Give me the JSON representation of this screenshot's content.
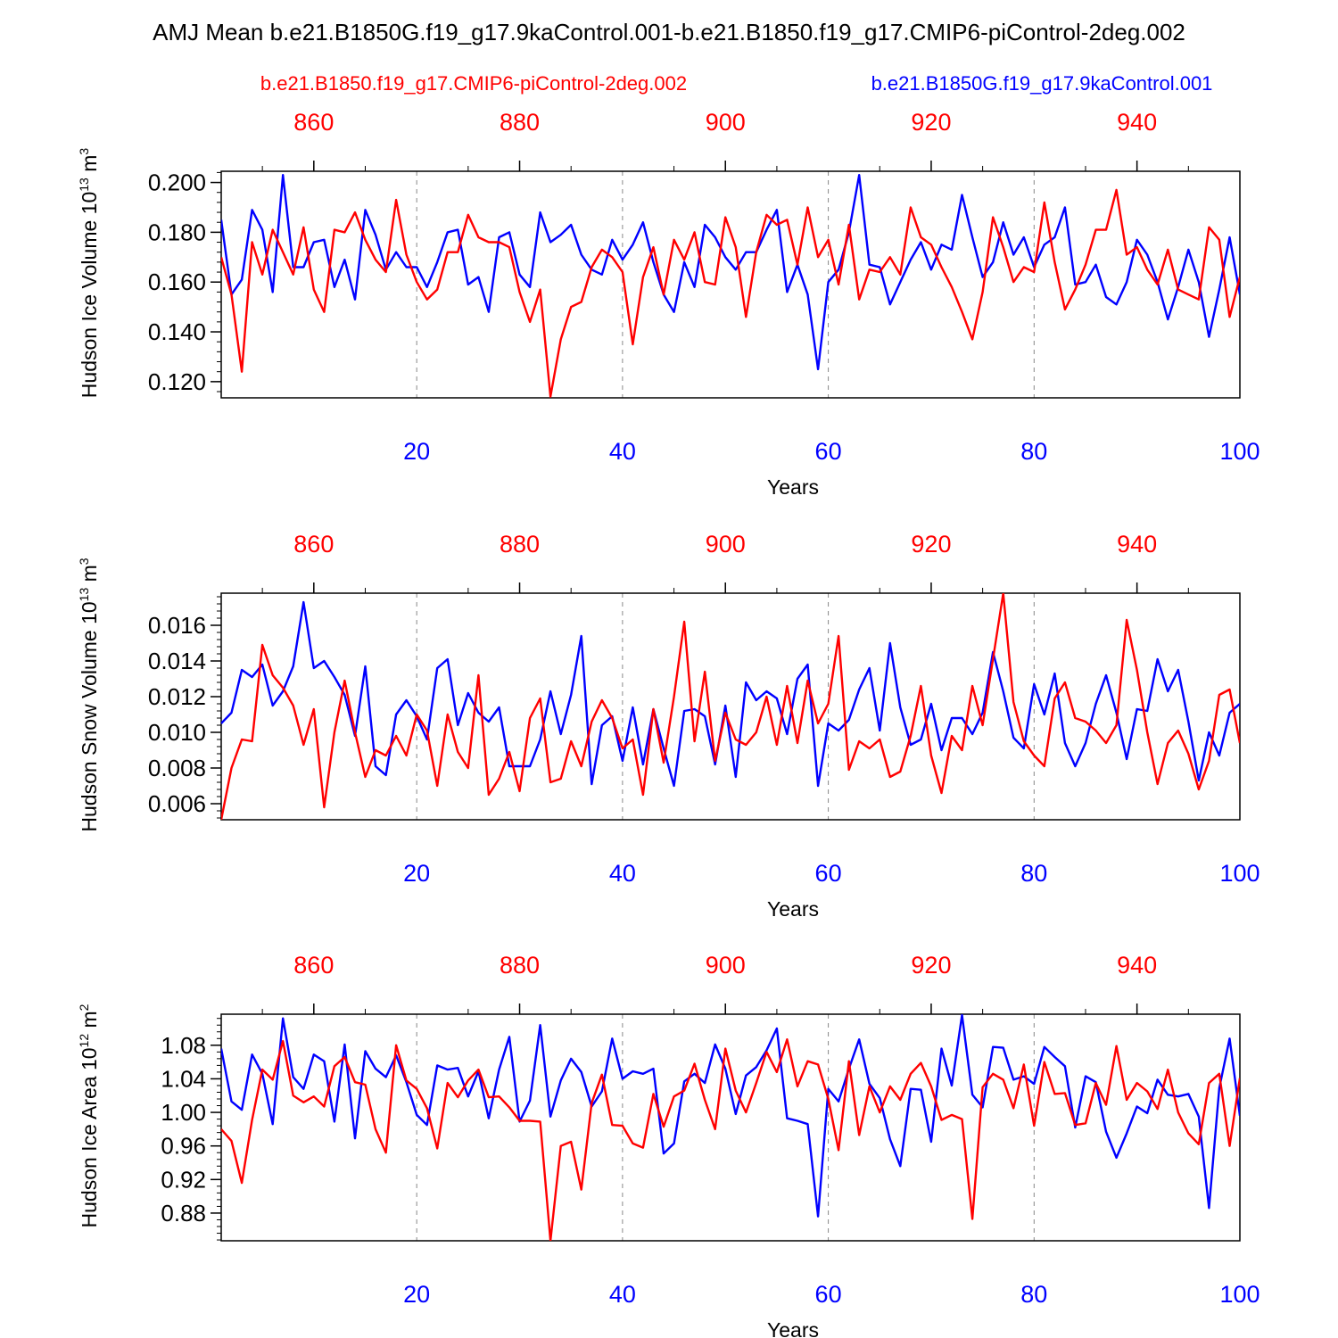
{
  "title": "AMJ Mean b.e21.B1850G.f19_g17.9kaControl.001-b.e21.B1850.f19_g17.CMIP6-piControl-2deg.002",
  "legend": {
    "red_label": "b.e21.B1850.f19_g17.CMIP6-piControl-2deg.002",
    "blue_label": "b.e21.B1850G.f19_g17.9kaControl.001"
  },
  "colors": {
    "red": "#ff0000",
    "blue": "#0000ff",
    "axis": "#000000",
    "grid": "#888888"
  },
  "chart_data": [
    {
      "type": "line",
      "ylabel": "Hudson Ice Volume 10",
      "ylabel_exp": "13",
      "ylabel_unit": " m",
      "ylabel_unit_exp": "3",
      "xlabel": "Years",
      "xlim": [
        1,
        100
      ],
      "ylim": [
        0.1135,
        0.2045
      ],
      "yticks": [
        0.12,
        0.14,
        0.16,
        0.18,
        0.2
      ],
      "ytick_labels": [
        "0.120",
        "0.140",
        "0.160",
        "0.180",
        "0.200"
      ],
      "yminor": 0.004,
      "xticks_bottom": [
        20,
        40,
        60,
        80,
        100
      ],
      "xtick_labels_bottom": [
        "20",
        "40",
        "60",
        "80",
        "100"
      ],
      "xticks_top_labels": [
        "860",
        "880",
        "900",
        "920",
        "940"
      ],
      "grid_x": [
        20,
        40,
        60,
        80
      ],
      "series": [
        {
          "name": "b.e21.B1850G.f19_g17.9kaControl.001",
          "color": "blue",
          "values": [
            0.185,
            0.155,
            0.161,
            0.189,
            0.181,
            0.156,
            0.203,
            0.166,
            0.166,
            0.176,
            0.177,
            0.158,
            0.169,
            0.153,
            0.189,
            0.179,
            0.165,
            0.172,
            0.166,
            0.166,
            0.158,
            0.168,
            0.18,
            0.181,
            0.159,
            0.162,
            0.148,
            0.178,
            0.18,
            0.163,
            0.158,
            0.188,
            0.176,
            0.179,
            0.183,
            0.171,
            0.165,
            0.163,
            0.177,
            0.169,
            0.175,
            0.184,
            0.168,
            0.155,
            0.148,
            0.168,
            0.158,
            0.183,
            0.178,
            0.17,
            0.165,
            0.172,
            0.172,
            0.181,
            0.189,
            0.156,
            0.167,
            0.155,
            0.125,
            0.16,
            0.165,
            0.18,
            0.203,
            0.167,
            0.166,
            0.151,
            0.16,
            0.169,
            0.176,
            0.165,
            0.175,
            0.173,
            0.195,
            0.178,
            0.162,
            0.168,
            0.184,
            0.171,
            0.178,
            0.166,
            0.175,
            0.178,
            0.19,
            0.159,
            0.16,
            0.167,
            0.154,
            0.151,
            0.16,
            0.177,
            0.171,
            0.16,
            0.145,
            0.158,
            0.173,
            0.16,
            0.138,
            0.157,
            0.178,
            0.155
          ]
        },
        {
          "name": "b.e21.B1850.f19_g17.CMIP6-piControl-2deg.002",
          "color": "red",
          "values": [
            0.17,
            0.155,
            0.124,
            0.176,
            0.163,
            0.181,
            0.172,
            0.163,
            0.182,
            0.157,
            0.148,
            0.181,
            0.18,
            0.188,
            0.177,
            0.169,
            0.164,
            0.193,
            0.171,
            0.16,
            0.153,
            0.157,
            0.172,
            0.172,
            0.187,
            0.178,
            0.176,
            0.176,
            0.174,
            0.156,
            0.144,
            0.157,
            0.114,
            0.137,
            0.15,
            0.152,
            0.166,
            0.173,
            0.17,
            0.164,
            0.135,
            0.162,
            0.174,
            0.155,
            0.177,
            0.169,
            0.18,
            0.16,
            0.159,
            0.186,
            0.174,
            0.146,
            0.172,
            0.187,
            0.183,
            0.185,
            0.167,
            0.19,
            0.17,
            0.177,
            0.159,
            0.183,
            0.153,
            0.165,
            0.164,
            0.17,
            0.163,
            0.19,
            0.178,
            0.175,
            0.166,
            0.158,
            0.148,
            0.137,
            0.156,
            0.186,
            0.174,
            0.16,
            0.166,
            0.164,
            0.192,
            0.168,
            0.149,
            0.157,
            0.167,
            0.181,
            0.181,
            0.197,
            0.171,
            0.174,
            0.165,
            0.159,
            0.173,
            0.157,
            0.155,
            0.153,
            0.182,
            0.177,
            0.146,
            0.162
          ]
        }
      ]
    },
    {
      "type": "line",
      "ylabel": "Hudson Snow Volume 10",
      "ylabel_exp": "13",
      "ylabel_unit": " m",
      "ylabel_unit_exp": "3",
      "xlabel": "Years",
      "xlim": [
        1,
        100
      ],
      "ylim": [
        0.0051,
        0.0178
      ],
      "yticks": [
        0.006,
        0.008,
        0.01,
        0.012,
        0.014,
        0.016
      ],
      "ytick_labels": [
        "0.006",
        "0.008",
        "0.010",
        "0.012",
        "0.014",
        "0.016"
      ],
      "yminor": 0.0004,
      "xticks_bottom": [
        20,
        40,
        60,
        80,
        100
      ],
      "xtick_labels_bottom": [
        "20",
        "40",
        "60",
        "80",
        "100"
      ],
      "xticks_top_labels": [
        "860",
        "880",
        "900",
        "920",
        "940"
      ],
      "grid_x": [
        20,
        40,
        60,
        80
      ],
      "series": [
        {
          "name": "b.e21.B1850G.f19_g17.9kaControl.001",
          "color": "blue",
          "values": [
            0.0105,
            0.0111,
            0.0135,
            0.0131,
            0.0138,
            0.0115,
            0.0123,
            0.0137,
            0.0173,
            0.0136,
            0.014,
            0.0131,
            0.0121,
            0.0098,
            0.0137,
            0.0081,
            0.0076,
            0.011,
            0.0118,
            0.0109,
            0.0096,
            0.0136,
            0.0141,
            0.0104,
            0.0122,
            0.0111,
            0.0106,
            0.0114,
            0.0081,
            0.0081,
            0.0081,
            0.0096,
            0.0123,
            0.0099,
            0.0121,
            0.0154,
            0.0071,
            0.0104,
            0.0109,
            0.0084,
            0.0114,
            0.0082,
            0.0113,
            0.0091,
            0.007,
            0.0112,
            0.0113,
            0.0109,
            0.0082,
            0.0115,
            0.0075,
            0.0128,
            0.0118,
            0.0123,
            0.0119,
            0.0099,
            0.013,
            0.0138,
            0.007,
            0.0105,
            0.0101,
            0.0107,
            0.0124,
            0.0136,
            0.0101,
            0.015,
            0.0114,
            0.0093,
            0.0096,
            0.0116,
            0.009,
            0.0108,
            0.0108,
            0.0099,
            0.0111,
            0.0145,
            0.0123,
            0.0097,
            0.0091,
            0.0127,
            0.011,
            0.0133,
            0.0094,
            0.0081,
            0.0094,
            0.0116,
            0.0132,
            0.0111,
            0.0085,
            0.0113,
            0.0112,
            0.0141,
            0.0123,
            0.0135,
            0.0106,
            0.0073,
            0.01,
            0.0087,
            0.0111,
            0.0116
          ]
        },
        {
          "name": "b.e21.B1850.f19_g17.CMIP6-piControl-2deg.002",
          "color": "red",
          "values": [
            0.0051,
            0.008,
            0.0096,
            0.0095,
            0.0149,
            0.0132,
            0.0125,
            0.0115,
            0.0093,
            0.0113,
            0.0058,
            0.01,
            0.0129,
            0.01,
            0.0075,
            0.009,
            0.0087,
            0.0098,
            0.0087,
            0.011,
            0.0101,
            0.007,
            0.011,
            0.0089,
            0.008,
            0.0132,
            0.0065,
            0.0074,
            0.0089,
            0.0067,
            0.0108,
            0.0119,
            0.0072,
            0.0074,
            0.0095,
            0.0081,
            0.0106,
            0.0118,
            0.0108,
            0.0091,
            0.0096,
            0.0065,
            0.0113,
            0.0083,
            0.012,
            0.0162,
            0.0095,
            0.0134,
            0.0084,
            0.0111,
            0.0096,
            0.0093,
            0.01,
            0.012,
            0.0093,
            0.0126,
            0.0094,
            0.0129,
            0.0105,
            0.0116,
            0.0154,
            0.0079,
            0.0095,
            0.0091,
            0.0096,
            0.0075,
            0.0078,
            0.0098,
            0.0126,
            0.0087,
            0.0066,
            0.0098,
            0.009,
            0.0126,
            0.0104,
            0.0141,
            0.0178,
            0.0117,
            0.0095,
            0.0087,
            0.0081,
            0.0119,
            0.0128,
            0.0108,
            0.0106,
            0.0101,
            0.0094,
            0.0104,
            0.0163,
            0.0135,
            0.01,
            0.0071,
            0.0094,
            0.0101,
            0.0088,
            0.0068,
            0.0084,
            0.0121,
            0.0124,
            0.0094
          ]
        }
      ]
    },
    {
      "type": "line",
      "ylabel": "Hudson Ice Area 10",
      "ylabel_exp": "12",
      "ylabel_unit": " m",
      "ylabel_unit_exp": "2",
      "xlabel": "Years",
      "xlim": [
        1,
        100
      ],
      "ylim": [
        0.847,
        1.117
      ],
      "yticks": [
        0.88,
        0.92,
        0.96,
        1.0,
        1.04,
        1.08
      ],
      "ytick_labels": [
        "0.88",
        "0.92",
        "0.96",
        "1.00",
        "1.04",
        "1.08"
      ],
      "yminor": 0.008,
      "xticks_bottom": [
        20,
        40,
        60,
        80,
        100
      ],
      "xtick_labels_bottom": [
        "20",
        "40",
        "60",
        "80",
        "100"
      ],
      "xticks_top_labels": [
        "860",
        "880",
        "900",
        "920",
        "940"
      ],
      "grid_x": [
        20,
        40,
        60,
        80
      ],
      "series": [
        {
          "name": "b.e21.B1850G.f19_g17.9kaControl.001",
          "color": "blue",
          "values": [
            1.076,
            1.013,
            1.003,
            1.069,
            1.046,
            0.986,
            1.112,
            1.042,
            1.028,
            1.069,
            1.061,
            0.989,
            1.081,
            0.969,
            1.073,
            1.052,
            1.042,
            1.068,
            1.036,
            0.997,
            0.985,
            1.056,
            1.051,
            1.053,
            1.019,
            1.049,
            0.993,
            1.051,
            1.09,
            0.989,
            1.014,
            1.104,
            0.995,
            1.038,
            1.064,
            1.048,
            1.007,
            1.025,
            1.088,
            1.04,
            1.049,
            1.046,
            1.052,
            0.951,
            0.963,
            1.037,
            1.046,
            1.035,
            1.081,
            1.052,
            0.998,
            1.044,
            1.054,
            1.074,
            1.1,
            0.993,
            0.99,
            0.986,
            0.876,
            1.028,
            1.013,
            1.052,
            1.087,
            1.034,
            1.017,
            0.968,
            0.936,
            1.028,
            1.027,
            0.965,
            1.076,
            1.032,
            1.116,
            1.021,
            1.006,
            1.078,
            1.077,
            1.039,
            1.043,
            1.034,
            1.078,
            1.066,
            1.055,
            0.982,
            1.043,
            1.036,
            0.977,
            0.946,
            0.975,
            1.007,
            0.999,
            1.039,
            1.021,
            1.019,
            1.022,
            0.995,
            0.886,
            1.029,
            1.088,
            0.996
          ]
        },
        {
          "name": "b.e21.B1850.f19_g17.CMIP6-piControl-2deg.002",
          "color": "red",
          "values": [
            0.98,
            0.966,
            0.916,
            0.991,
            1.051,
            1.039,
            1.085,
            1.02,
            1.012,
            1.019,
            1.007,
            1.055,
            1.066,
            1.036,
            1.033,
            0.98,
            0.952,
            1.08,
            1.038,
            1.028,
            1.005,
            0.957,
            1.035,
            1.018,
            1.038,
            1.051,
            1.018,
            1.019,
            1.006,
            0.99,
            0.99,
            0.989,
            0.847,
            0.96,
            0.965,
            0.908,
            1.011,
            1.045,
            0.985,
            0.984,
            0.963,
            0.958,
            1.022,
            0.983,
            1.019,
            1.026,
            1.058,
            1.015,
            0.98,
            1.076,
            1.026,
            1.0,
            1.035,
            1.072,
            1.048,
            1.087,
            1.031,
            1.061,
            1.057,
            1.016,
            0.955,
            1.061,
            0.973,
            1.031,
            1.0,
            1.031,
            1.015,
            1.046,
            1.059,
            1.031,
            0.991,
            0.997,
            0.992,
            0.873,
            1.03,
            1.046,
            1.039,
            1.005,
            1.057,
            0.984,
            1.06,
            1.022,
            1.023,
            0.985,
            0.987,
            1.035,
            1.009,
            1.079,
            1.015,
            1.035,
            1.025,
            1.004,
            1.051,
            1.0,
            0.975,
            0.962,
            1.035,
            1.046,
            0.96,
            1.041
          ]
        }
      ]
    }
  ]
}
